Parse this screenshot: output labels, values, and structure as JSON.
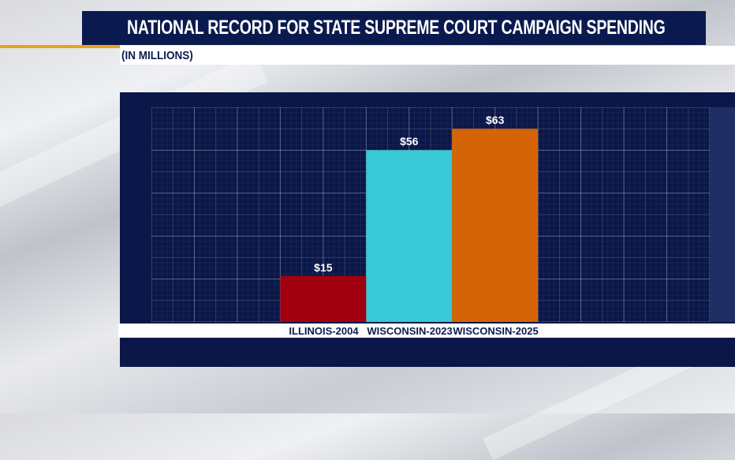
{
  "header": {
    "title": "NATIONAL RECORD FOR STATE SUPREME COURT CAMPAIGN SPENDING",
    "subtitle": "(IN MILLIONS)"
  },
  "chart_data": {
    "type": "bar",
    "title": "NATIONAL RECORD FOR STATE SUPREME COURT CAMPAIGN SPENDING",
    "subtitle": "(IN MILLIONS)",
    "categories": [
      "ILLINOIS-2004",
      "WISCONSIN-2023",
      "WISCONSIN-2025"
    ],
    "values": [
      15,
      56,
      63
    ],
    "value_labels": [
      "$15",
      "$56",
      "$63"
    ],
    "colors": [
      "#a0000f",
      "#38c8d6",
      "#d46406"
    ],
    "xlabel": "",
    "ylabel": "",
    "ylim": [
      0,
      70
    ],
    "grid": true,
    "legend": "none"
  }
}
